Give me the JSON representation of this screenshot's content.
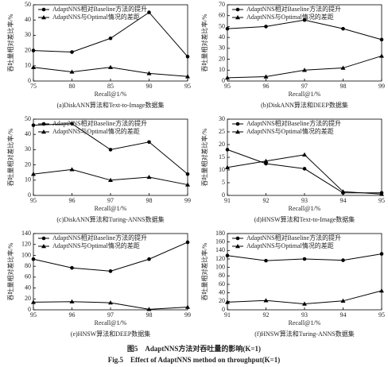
{
  "chart_data": [
    {
      "type": "line",
      "subtitle": "(a)DiskANN算法和Text-to-Image数据集",
      "xlabel": "Recall@1/%",
      "ylabel": "吞吐量相对差比率/%",
      "x": [
        75,
        80,
        85,
        90,
        95
      ],
      "xlim": [
        75,
        95
      ],
      "xticks": [
        75,
        80,
        85,
        90,
        95
      ],
      "ylim": [
        0,
        50
      ],
      "yticks": [
        0,
        10,
        20,
        30,
        40,
        50
      ],
      "legend": "upper left",
      "series": [
        {
          "name": "AdaptNNS相对Baseline方法的提升",
          "color": "#000000",
          "marker": "circle",
          "values": [
            20,
            19,
            28,
            45,
            16
          ]
        },
        {
          "name": "AdaptNNS与Optimal情况的差距",
          "color": "#000000",
          "marker": "triangle",
          "values": [
            9,
            6,
            9,
            5,
            3
          ]
        }
      ]
    },
    {
      "type": "line",
      "subtitle": "(b)DiskANN算法和DEEP数据集",
      "xlabel": "Recall@1/%",
      "ylabel": "吞吐量相对差比率/%",
      "x": [
        95,
        96,
        97,
        98,
        99
      ],
      "xlim": [
        95,
        99
      ],
      "xticks": [
        95,
        96,
        97,
        98,
        99
      ],
      "ylim": [
        0,
        70
      ],
      "yticks": [
        0,
        10,
        20,
        30,
        40,
        50,
        60,
        70
      ],
      "legend": "upper left",
      "series": [
        {
          "name": "AdaptNNS相对Baseline方法的提升",
          "color": "#000000",
          "marker": "circle",
          "values": [
            48,
            50,
            56,
            48,
            38
          ]
        },
        {
          "name": "AdaptNNS与Optimal情况的差距",
          "color": "#000000",
          "marker": "triangle",
          "values": [
            3,
            4,
            10,
            12,
            23
          ]
        }
      ]
    },
    {
      "type": "line",
      "subtitle": "(c)DiskANN算法和Turing-ANNS数据集",
      "xlabel": "Recall@1/%",
      "ylabel": "吞吐量相对差比率/%",
      "x": [
        95,
        96,
        97,
        98,
        99
      ],
      "xlim": [
        95,
        99
      ],
      "xticks": [
        95,
        96,
        97,
        98,
        99
      ],
      "ylim": [
        0,
        50
      ],
      "yticks": [
        0,
        10,
        20,
        30,
        40,
        50
      ],
      "legend": "upper left",
      "series": [
        {
          "name": "AdaptNNS相对Baseline方法的提升",
          "color": "#000000",
          "marker": "circle",
          "values": [
            46,
            47,
            30,
            35,
            14
          ]
        },
        {
          "name": "AdaptNNS与Optimal情况的差距",
          "color": "#000000",
          "marker": "triangle",
          "values": [
            14,
            17,
            10,
            12,
            7
          ]
        }
      ]
    },
    {
      "type": "line",
      "subtitle": "(d)HNSW算法和Text-to-Image数据集",
      "xlabel": "Recall@1/%",
      "ylabel": "吞吐量相对差比率/%",
      "x": [
        91,
        92,
        93,
        94,
        95
      ],
      "xlim": [
        91,
        95
      ],
      "xticks": [
        91,
        92,
        93,
        94,
        95
      ],
      "ylim": [
        0,
        30
      ],
      "yticks": [
        0,
        5,
        10,
        15,
        20,
        25,
        30
      ],
      "legend": "upper left",
      "series": [
        {
          "name": "AdaptNNS相对Baseline方法的提升",
          "color": "#000000",
          "marker": "circle",
          "values": [
            18,
            12.5,
            10.5,
            1,
            1
          ]
        },
        {
          "name": "AdaptNNS与Optimal情况的差距",
          "color": "#000000",
          "marker": "triangle",
          "values": [
            11,
            13.5,
            16,
            1.5,
            0.5
          ]
        }
      ]
    },
    {
      "type": "line",
      "subtitle": "(e)HNSW算法和DEEP数据集",
      "xlabel": "Recall@1/%",
      "ylabel": "吞吐量相对差比率/%",
      "x": [
        95,
        96,
        97,
        98,
        99
      ],
      "xlim": [
        95,
        99
      ],
      "xticks": [
        95,
        96,
        97,
        98,
        99
      ],
      "ylim": [
        0,
        140
      ],
      "yticks": [
        0,
        20,
        40,
        60,
        80,
        100,
        120,
        140
      ],
      "legend": "upper left",
      "series": [
        {
          "name": "AdaptNNS相对Baseline方法的提升",
          "color": "#000000",
          "marker": "circle",
          "values": [
            93,
            77,
            71,
            93,
            124
          ]
        },
        {
          "name": "AdaptNNS与Optimal情况的差距",
          "color": "#000000",
          "marker": "triangle",
          "values": [
            14,
            15,
            13,
            1,
            5
          ]
        }
      ]
    },
    {
      "type": "line",
      "subtitle": "(f)HNSW算法和Turing-ANNS数据集",
      "xlabel": "Recall@1/%",
      "ylabel": "吞吐量相对差比率/%",
      "x": [
        91,
        92,
        93,
        94,
        95
      ],
      "xlim": [
        91,
        95
      ],
      "xticks": [
        91,
        92,
        93,
        94,
        95
      ],
      "ylim": [
        0,
        180
      ],
      "yticks": [
        0,
        20,
        40,
        60,
        80,
        100,
        120,
        140,
        160,
        180
      ],
      "legend": "upper left",
      "series": [
        {
          "name": "AdaptNNS相对Baseline方法的提升",
          "color": "#000000",
          "marker": "circle",
          "values": [
            128,
            116,
            120,
            117,
            132
          ]
        },
        {
          "name": "AdaptNNS与Optimal情况的差距",
          "color": "#000000",
          "marker": "triangle",
          "values": [
            18,
            22,
            14,
            21,
            45
          ]
        }
      ]
    }
  ],
  "caption": {
    "zh": "图5　AdaptNNS方法对吞吐量的影响(K=1)",
    "en": "Fig.5　Effect of AdaptNNS method on throughput(K=1)"
  }
}
